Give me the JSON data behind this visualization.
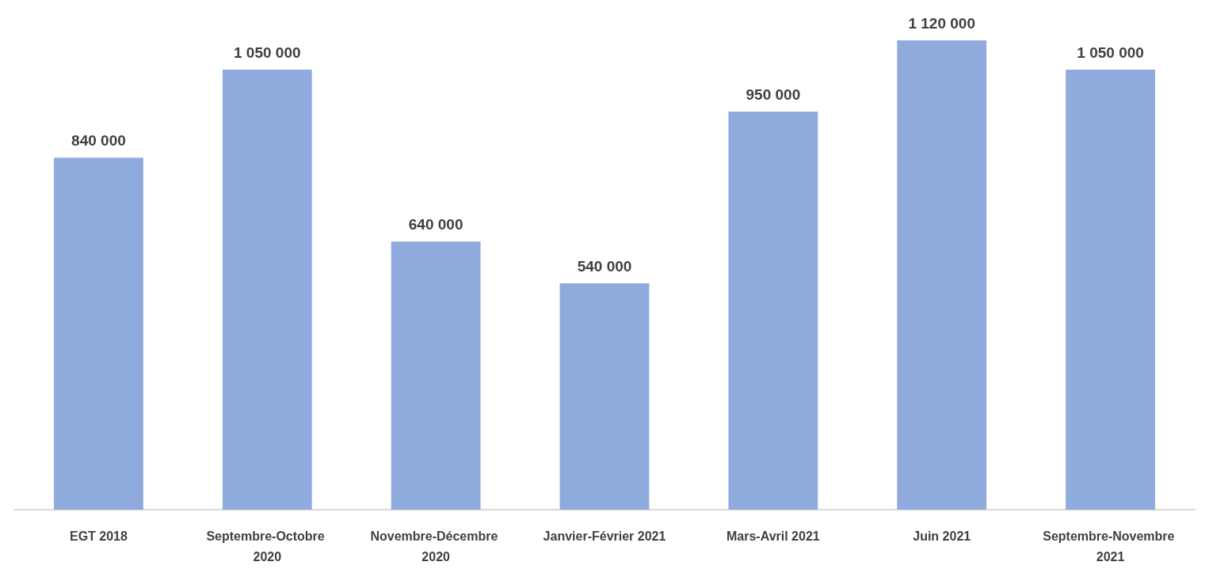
{
  "chart_data": {
    "type": "bar",
    "categories": [
      "EGT 2018",
      "Septembre-Octobre 2020",
      "Novembre-Décembre 2020",
      "Janvier-Février 2021",
      "Mars-Avril 2021",
      "Juin 2021",
      "Septembre-Novembre 2021"
    ],
    "values": [
      840000,
      1050000,
      640000,
      540000,
      950000,
      1120000,
      1050000
    ],
    "value_labels": [
      "840 000",
      "1 050 000",
      "640 000",
      "540 000",
      "950 000",
      "1 120 000",
      "1 050 000"
    ],
    "color": "#8faadc"
  }
}
